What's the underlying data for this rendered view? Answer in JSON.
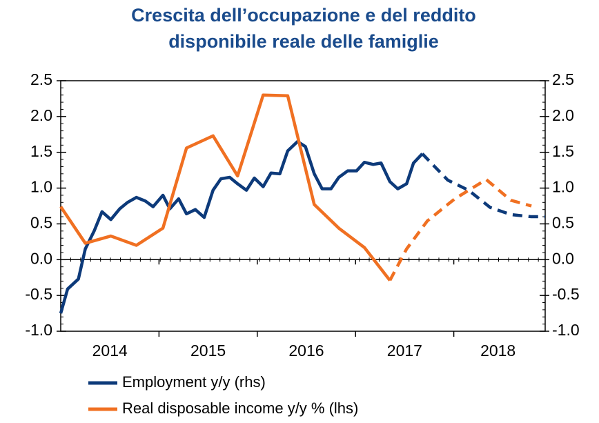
{
  "chart_data": {
    "type": "line",
    "title": [
      "Crescita dell’occupazione e del reddito",
      "disponibile reale delle famiglie"
    ],
    "xlim": [
      2014,
      2018.93
    ],
    "xticks": [
      2015,
      2016,
      2017,
      2018
    ],
    "xlabels": [
      {
        "value": 2014.5,
        "label": "2014"
      },
      {
        "value": 2015.5,
        "label": "2015"
      },
      {
        "value": 2016.5,
        "label": "2016"
      },
      {
        "value": 2017.5,
        "label": "2017"
      },
      {
        "value": 2018.45,
        "label": "2018"
      }
    ],
    "ylim": [
      -1,
      2.5
    ],
    "yticks": [
      {
        "value": 2.5,
        "label": "2.5"
      },
      {
        "value": 2,
        "label": "2.0"
      },
      {
        "value": 1.5,
        "label": "1.5"
      },
      {
        "value": 1,
        "label": "1.0"
      },
      {
        "value": 0.5,
        "label": "0.5"
      },
      {
        "value": 0,
        "label": "0.0"
      },
      {
        "value": -0.5,
        "label": "-0.5"
      },
      {
        "value": -1,
        "label": "-1.0"
      }
    ],
    "y2lim": [
      -1,
      2.5
    ],
    "y2ticks": [
      {
        "value": 2.5,
        "label": "2.5"
      },
      {
        "value": 2,
        "label": "2.0"
      },
      {
        "value": 1.5,
        "label": "1.5"
      },
      {
        "value": 1,
        "label": "1.0"
      },
      {
        "value": 0.5,
        "label": "0.5"
      },
      {
        "value": 0,
        "label": "0.0"
      },
      {
        "value": -0.5,
        "label": "-0.5"
      },
      {
        "value": -1,
        "label": "-1.0"
      }
    ],
    "series": [
      {
        "name": "Employment y/y (rhs)",
        "color": "#0d3a7a",
        "axis": "y2",
        "dashed_from": 43,
        "x": [
          2014.0,
          2014.07,
          2014.18,
          2014.25,
          2014.34,
          2014.42,
          2014.51,
          2014.6,
          2014.68,
          2014.77,
          2014.86,
          2014.94,
          2015.04,
          2015.11,
          2015.2,
          2015.28,
          2015.37,
          2015.46,
          2015.55,
          2015.63,
          2015.72,
          2015.8,
          2015.89,
          2015.97,
          2016.06,
          2016.14,
          2016.23,
          2016.31,
          2016.41,
          2016.49,
          2016.58,
          2016.66,
          2016.75,
          2016.83,
          2016.92,
          2017.01,
          2017.09,
          2017.18,
          2017.26,
          2017.35,
          2017.43,
          2017.52,
          2017.59,
          2017.68,
          2017.77,
          2017.94,
          2018.15,
          2018.37,
          2018.58,
          2018.79,
          2018.93
        ],
        "values": [
          -0.75,
          -0.41,
          -0.27,
          0.15,
          0.4,
          0.67,
          0.56,
          0.71,
          0.8,
          0.87,
          0.82,
          0.74,
          0.9,
          0.71,
          0.85,
          0.64,
          0.7,
          0.59,
          0.97,
          1.13,
          1.15,
          1.06,
          0.97,
          1.14,
          1.02,
          1.21,
          1.2,
          1.52,
          1.65,
          1.58,
          1.2,
          0.99,
          0.99,
          1.15,
          1.24,
          1.24,
          1.36,
          1.33,
          1.35,
          1.09,
          0.99,
          1.06,
          1.35,
          1.48,
          1.35,
          1.11,
          0.97,
          0.73,
          0.63,
          0.6,
          0.6
        ]
      },
      {
        "name": "Real disposable income y/y % (lhs)",
        "color": "#f07022",
        "axis": "y",
        "dashed_from": 13,
        "x": [
          2014.0,
          2014.25,
          2014.51,
          2014.77,
          2015.04,
          2015.28,
          2015.55,
          2015.8,
          2016.06,
          2016.31,
          2016.58,
          2016.83,
          2017.09,
          2017.35,
          2017.52,
          2017.73,
          2018.01,
          2018.33,
          2018.58,
          2018.79
        ],
        "values": [
          0.74,
          0.23,
          0.33,
          0.2,
          0.44,
          1.56,
          1.73,
          1.17,
          2.3,
          2.29,
          0.77,
          0.44,
          0.17,
          -0.29,
          0.15,
          0.54,
          0.85,
          1.12,
          0.83,
          0.75
        ]
      }
    ]
  }
}
